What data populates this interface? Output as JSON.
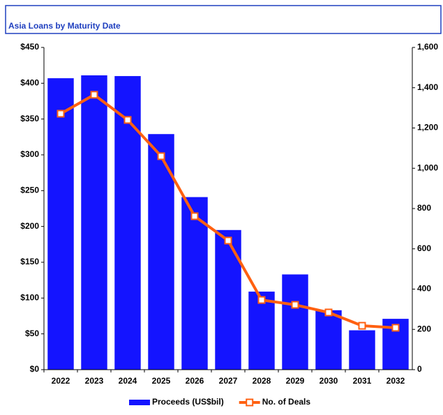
{
  "chart_data": {
    "type": "bar",
    "title": "Asia Loans by Maturity Date",
    "categories": [
      "2022",
      "2023",
      "2024",
      "2025",
      "2026",
      "2027",
      "2028",
      "2029",
      "2030",
      "2031",
      "2032"
    ],
    "series": [
      {
        "name": "Proceeds (US$bil)",
        "type": "bar",
        "color": "#1414ff",
        "values": [
          407,
          411,
          410,
          329,
          241,
          195,
          109,
          133,
          83,
          55,
          71
        ]
      },
      {
        "name": "No. of Deals",
        "type": "line",
        "axis": "y2",
        "color": "#ff6010",
        "values": [
          1271,
          1365,
          1240,
          1060,
          762,
          641,
          346,
          322,
          284,
          218,
          208
        ]
      }
    ],
    "ylim": [
      0,
      450
    ],
    "yticks": [
      {
        "value": 0,
        "label": "$0"
      },
      {
        "value": 50,
        "label": "$50"
      },
      {
        "value": 100,
        "label": "$100"
      },
      {
        "value": 150,
        "label": "$150"
      },
      {
        "value": 200,
        "label": "$200"
      },
      {
        "value": 250,
        "label": "$250"
      },
      {
        "value": 300,
        "label": "$300"
      },
      {
        "value": 350,
        "label": "$350"
      },
      {
        "value": 400,
        "label": "$400"
      },
      {
        "value": 450,
        "label": "$450"
      }
    ],
    "y2lim": [
      0,
      1600
    ],
    "y2ticks": [
      0,
      200,
      400,
      600,
      800,
      {
        "value": 1000,
        "label": "1,000"
      },
      {
        "value": 1200,
        "label": "1,200"
      },
      {
        "value": 1400,
        "label": "1,400"
      },
      {
        "value": 1600,
        "label": "1,600"
      }
    ],
    "grid": false,
    "legend": "bottom"
  }
}
